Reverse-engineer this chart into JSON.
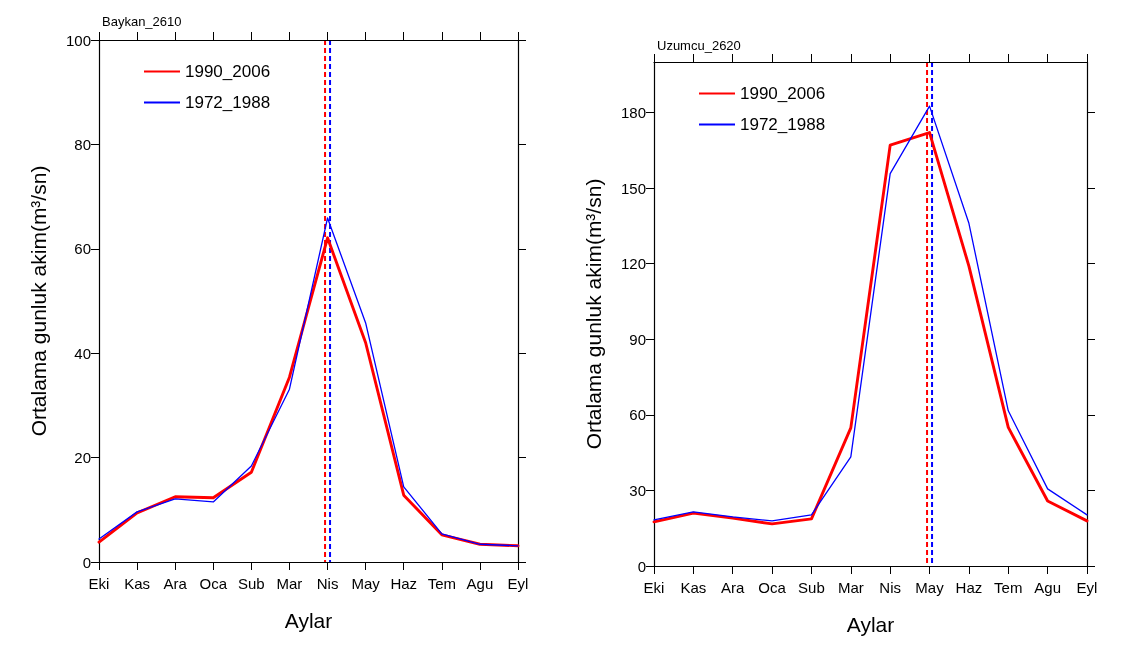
{
  "chart_data": [
    {
      "type": "line",
      "title": "Baykan_2610",
      "xlabel": "Aylar",
      "ylabel": "Ortalama gunluk akim(m³/sn)",
      "categories": [
        "Eki",
        "Kas",
        "Ara",
        "Oca",
        "Sub",
        "Mar",
        "Nis",
        "May",
        "Haz",
        "Tem",
        "Agu",
        "Eyl"
      ],
      "ylim": [
        0,
        100
      ],
      "yticks": [
        0,
        20,
        40,
        60,
        80,
        100
      ],
      "grid": false,
      "legend": "top left",
      "marker": "none",
      "line_style": "solid",
      "series": [
        {
          "name": "1990_2006",
          "color": "#ff0000",
          "values": [
            3.8,
            9.4,
            12.5,
            12.3,
            17.2,
            35.4,
            62.1,
            42,
            12.8,
            5.2,
            3.4,
            3.1
          ]
        },
        {
          "name": "1972_1988",
          "color": "#0000ff",
          "values": [
            4.4,
            9.6,
            12.1,
            11.5,
            18.4,
            33.1,
            65.9,
            45.8,
            14.4,
            5.4,
            3.4,
            3.1
          ]
        }
      ],
      "ref_lines": [
        {
          "axis": "x",
          "value": "Nis",
          "color": "#ff0000",
          "line_style": "dashed"
        },
        {
          "axis": "x",
          "value": "Nis",
          "color": "#0000ff",
          "line_style": "dashed"
        }
      ]
    },
    {
      "type": "line",
      "title": "Uzumcu_2620",
      "xlabel": "Aylar",
      "ylabel": "Ortalama gunluk akim(m³/sn)",
      "categories": [
        "Eki",
        "Kas",
        "Ara",
        "Oca",
        "Sub",
        "Mar",
        "Nis",
        "May",
        "Haz",
        "Tem",
        "Agu",
        "Eyl"
      ],
      "ylim": [
        0,
        200
      ],
      "yticks": [
        0,
        30,
        60,
        90,
        120,
        150,
        180
      ],
      "grid": false,
      "legend": "top left",
      "marker": "none",
      "line_style": "solid",
      "series": [
        {
          "name": "1990_2006",
          "color": "#ff0000",
          "values": [
            17.5,
            21,
            19,
            16.7,
            18.7,
            54.8,
            167,
            172,
            119,
            55,
            25.8,
            17.9
          ]
        },
        {
          "name": "1972_1988",
          "color": "#0000ff",
          "values": [
            18.3,
            21.5,
            19.5,
            17.9,
            20.3,
            43.3,
            155.7,
            182.5,
            136,
            61.6,
            30.6,
            20.3
          ]
        }
      ],
      "ref_lines": [
        {
          "axis": "x",
          "value": "May",
          "color": "#ff0000",
          "line_style": "dashed"
        },
        {
          "axis": "x",
          "value": "May",
          "color": "#0000ff",
          "line_style": "dashed"
        }
      ]
    }
  ]
}
